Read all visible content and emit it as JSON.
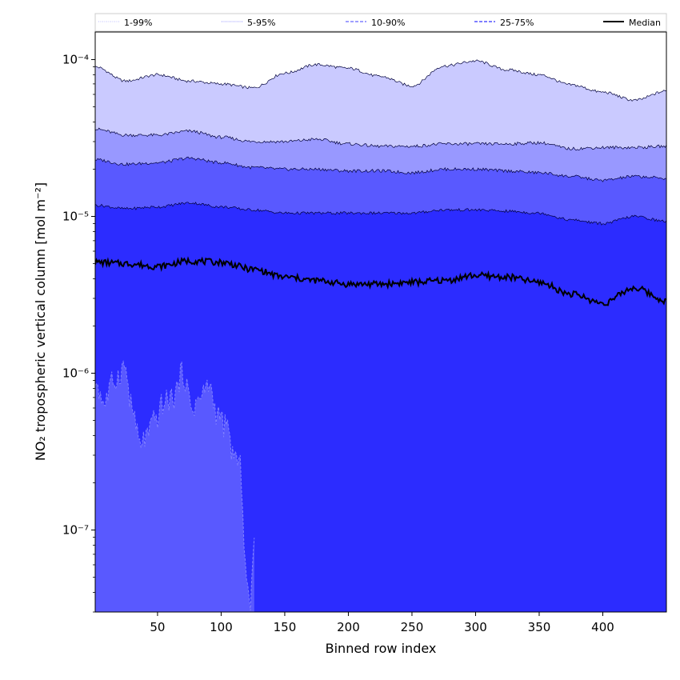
{
  "chart_data": {
    "type": "area",
    "xlabel": "Binned row index",
    "ylabel": "NO₂ tropospheric vertical column [mol m⁻²]",
    "yscale": "log",
    "xlim": [
      1,
      450
    ],
    "ylim": [
      3e-08,
      0.00015
    ],
    "x_ticks": [
      50,
      100,
      150,
      200,
      250,
      300,
      350,
      400
    ],
    "y_ticks": [
      {
        "value": 1e-07,
        "label": "10⁻⁷"
      },
      {
        "value": 1e-06,
        "label": "10⁻⁶"
      },
      {
        "value": 1e-05,
        "label": "10⁻⁵"
      },
      {
        "value": 0.0001,
        "label": "10⁻⁴"
      }
    ],
    "legend_position": "top, horizontal",
    "legend": [
      {
        "label": "1-99%",
        "color": "#c8c8ff",
        "style": "dotted"
      },
      {
        "label": "5-95%",
        "color": "#9d9dff",
        "style": "dotted"
      },
      {
        "label": "10-90%",
        "color": "#6666ff",
        "style": "dashed"
      },
      {
        "label": "25-75%",
        "color": "#3030ff",
        "style": "dashed"
      },
      {
        "label": "Median",
        "color": "#000000",
        "style": "solid"
      }
    ],
    "x": [
      1,
      25,
      50,
      75,
      100,
      125,
      150,
      175,
      200,
      225,
      250,
      275,
      300,
      325,
      350,
      375,
      400,
      425,
      450
    ],
    "series": [
      {
        "name": "1-99%",
        "role": "upper",
        "values": [
          9e-05,
          7.3e-05,
          8e-05,
          7.3e-05,
          7e-05,
          6.6e-05,
          8.2e-05,
          9.3e-05,
          8.8e-05,
          7.8e-05,
          6.8e-05,
          9.1e-05,
          9.8e-05,
          8.6e-05,
          8e-05,
          6.9e-05,
          6.2e-05,
          5.5e-05,
          6.3e-05
        ]
      },
      {
        "name": "5-95%",
        "role": "upper",
        "values": [
          3.6e-05,
          3.3e-05,
          3.3e-05,
          3.5e-05,
          3.2e-05,
          3e-05,
          3e-05,
          3.1e-05,
          2.9e-05,
          2.8e-05,
          2.8e-05,
          2.9e-05,
          2.9e-05,
          2.9e-05,
          2.95e-05,
          2.7e-05,
          2.75e-05,
          2.75e-05,
          2.8e-05
        ]
      },
      {
        "name": "10-90%",
        "role": "upper",
        "values": [
          2.3e-05,
          2.15e-05,
          2.2e-05,
          2.35e-05,
          2.2e-05,
          2.05e-05,
          2e-05,
          2e-05,
          1.95e-05,
          1.95e-05,
          1.9e-05,
          2e-05,
          2e-05,
          1.95e-05,
          1.9e-05,
          1.8e-05,
          1.7e-05,
          1.8e-05,
          1.75e-05
        ]
      },
      {
        "name": "25-75%",
        "role": "upper",
        "values": [
          1.18e-05,
          1.12e-05,
          1.15e-05,
          1.22e-05,
          1.15e-05,
          1.1e-05,
          1.05e-05,
          1.05e-05,
          1.05e-05,
          1.05e-05,
          1.05e-05,
          1.1e-05,
          1.1e-05,
          1.08e-05,
          1.05e-05,
          9.5e-06,
          9e-06,
          1e-05,
          9.3e-06
        ]
      },
      {
        "name": "Median",
        "role": "median",
        "values": [
          5.1e-06,
          5e-06,
          4.8e-06,
          5.2e-06,
          5.1e-06,
          4.6e-06,
          4.1e-06,
          3.9e-06,
          3.7e-06,
          3.7e-06,
          3.8e-06,
          3.9e-06,
          4.2e-06,
          4.1e-06,
          3.8e-06,
          3.2e-06,
          2.8e-06,
          3.5e-06,
          2.9e-06
        ]
      }
    ],
    "lower_percentile_1pct": {
      "x": [
        1,
        8,
        16,
        24,
        30,
        36,
        42,
        48,
        55,
        62,
        70,
        77,
        84,
        90,
        97,
        104,
        110,
        115,
        120,
        123,
        126
      ],
      "values": [
        9e-07,
        6.5e-07,
        9e-07,
        1.1e-06,
        6e-07,
        3.5e-07,
        4e-07,
        5e-07,
        6.5e-07,
        7e-07,
        1e-06,
        6e-07,
        7e-07,
        8.5e-07,
        5.5e-07,
        4.5e-07,
        3e-07,
        2.5e-07,
        5e-08,
        3e-08,
        1e-07
      ]
    }
  },
  "colors": {
    "band_1_99": "#cacaff",
    "band_5_95": "#9898ff",
    "band_10_90": "#5959ff",
    "band_25_75": "#2c2cff",
    "lower_band": "#5959ff",
    "median": "#000000"
  }
}
